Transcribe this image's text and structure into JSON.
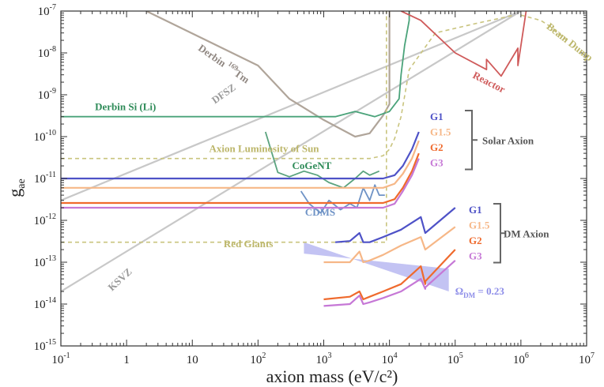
{
  "chart_data": {
    "type": "line",
    "title": "",
    "xlabel": "axion mass (eV/c²)",
    "ylabel_main": "g",
    "ylabel_sub": "ae",
    "xscale": "log",
    "yscale": "log",
    "xlim": [
      0.1,
      10000000
    ],
    "ylim": [
      1e-15,
      1e-07
    ],
    "x_tick_labels": [
      {
        "v": 0.1,
        "base": "10",
        "exp": "-1"
      },
      {
        "v": 1,
        "base": "1",
        "exp": ""
      },
      {
        "v": 10,
        "base": "10",
        "exp": ""
      },
      {
        "v": 100,
        "base": "10",
        "exp": "2"
      },
      {
        "v": 1000,
        "base": "10",
        "exp": "3"
      },
      {
        "v": 10000,
        "base": "10",
        "exp": "4"
      },
      {
        "v": 100000,
        "base": "10",
        "exp": "5"
      },
      {
        "v": 1000000,
        "base": "10",
        "exp": "6"
      },
      {
        "v": 10000000,
        "base": "10",
        "exp": "7"
      }
    ],
    "y_tick_labels": [
      {
        "v": 1e-15,
        "exp": "-15"
      },
      {
        "v": 1e-14,
        "exp": "-14"
      },
      {
        "v": 1e-13,
        "exp": "-13"
      },
      {
        "v": 1e-12,
        "exp": "-12"
      },
      {
        "v": 1e-11,
        "exp": "-11"
      },
      {
        "v": 1e-10,
        "exp": "-10"
      },
      {
        "v": 1e-09,
        "exp": "-9"
      },
      {
        "v": 1e-08,
        "exp": "-8"
      },
      {
        "v": 1e-07,
        "exp": "-7"
      }
    ],
    "series": [
      {
        "name": "DFSZ",
        "color": "#c8c8c8",
        "width": 2.2,
        "x": [
          0.1,
          1000000
        ],
        "y": [
          3e-12,
          1e-07
        ]
      },
      {
        "name": "KSVZ",
        "color": "#c8c8c8",
        "width": 2.2,
        "x": [
          0.1,
          1000000
        ],
        "y": [
          2e-14,
          1e-07
        ]
      },
      {
        "name": "Derbin 169Tm",
        "color": "#b0a59a",
        "width": 2.2,
        "x": [
          2,
          100,
          300,
          1000,
          3000,
          5000,
          8000,
          10000,
          10000
        ],
        "y": [
          1e-07,
          5e-09,
          8e-10,
          2.5e-10,
          1e-10,
          1.2e-10,
          3.2e-10,
          6e-10,
          1e-07
        ]
      },
      {
        "name": "Derbin Si (Li)",
        "color": "#4aa37a",
        "width": 1.8,
        "x": [
          0.1,
          1500,
          3000,
          6000,
          10000,
          14000,
          15000,
          17000,
          20000,
          20000
        ],
        "y": [
          3e-10,
          3e-10,
          4e-10,
          3e-10,
          4e-10,
          8e-10,
          3e-09,
          1.5e-08,
          6e-08,
          1e-07
        ]
      },
      {
        "name": "Axion Luminosity of Sun",
        "color": "#c9c47e",
        "width": 1.6,
        "dash": "5,4",
        "x": [
          0.1,
          1000,
          5000,
          8000,
          10000,
          12000,
          15000,
          20000,
          50000,
          200000,
          800000
        ],
        "y": [
          3e-11,
          3e-11,
          3e-11,
          3.5e-11,
          5e-11,
          9e-11,
          3e-10,
          4e-09,
          3e-08,
          5e-08,
          8e-08
        ]
      },
      {
        "name": "Red Giants",
        "color": "#c9c47e",
        "width": 1.6,
        "dash": "5,4",
        "x": [
          0.1,
          9000,
          9000,
          9000,
          9000
        ],
        "y": [
          3e-13,
          3e-13,
          3e-13,
          1e-12,
          1e-07
        ]
      },
      {
        "name": "Beam Dump",
        "color": "#c9c47e",
        "width": 1.6,
        "dash": "5,4",
        "x": [
          1000000,
          2000000,
          3000000,
          5000000
        ],
        "y": [
          8e-08,
          6e-08,
          4e-08,
          2e-08
        ]
      },
      {
        "name": "Reactor",
        "color": "#cf5a5a",
        "width": 1.8,
        "x": [
          15000,
          30000,
          100000,
          300000,
          300000,
          500000,
          900000,
          900000,
          1200000
        ],
        "y": [
          1e-07,
          6e-08,
          1e-08,
          4e-09,
          7e-09,
          2.8e-09,
          1.3e-08,
          5e-09,
          1e-07
        ]
      },
      {
        "name": "CoGeNT",
        "color": "#5aa37e",
        "width": 1.8,
        "x": [
          130,
          200,
          300,
          500,
          800,
          1200,
          2000,
          3000,
          4000,
          5000,
          7000
        ],
        "y": [
          1.3e-10,
          1.4e-11,
          1.1e-11,
          1.5e-11,
          1.2e-11,
          8e-12,
          6e-12,
          1e-11,
          1.5e-11,
          1.2e-11,
          1.5e-11
        ]
      },
      {
        "name": "CDMS",
        "color": "#6f93c6",
        "width": 1.8,
        "x": [
          450,
          600,
          900,
          1200,
          1800,
          2500,
          3200,
          4000,
          5000,
          6000,
          7000,
          8500
        ],
        "y": [
          5e-12,
          2.5e-12,
          1.5e-12,
          3e-12,
          1.8e-12,
          2.5e-12,
          2e-12,
          6e-12,
          3e-12,
          7e-12,
          4e-12,
          4e-12
        ]
      },
      {
        "name": "Solar G1",
        "color": "#4e52c7",
        "width": 2.2,
        "x": [
          0.1,
          8000,
          12000,
          16000,
          22000,
          28000
        ],
        "y": [
          1e-11,
          1e-11,
          1.2e-11,
          2e-11,
          5e-11,
          1.3e-10
        ]
      },
      {
        "name": "Solar G1.5",
        "color": "#f6b787",
        "width": 2.2,
        "x": [
          0.1,
          8000,
          12000,
          16000,
          22000,
          28000
        ],
        "y": [
          6e-12,
          6e-12,
          7.5e-12,
          1.3e-11,
          3e-11,
          8e-11
        ]
      },
      {
        "name": "Solar G2",
        "color": "#ef6a2d",
        "width": 2.2,
        "x": [
          0.1,
          8000,
          12000,
          16000,
          22000,
          28000
        ],
        "y": [
          2.6e-12,
          2.6e-12,
          3.2e-12,
          6e-12,
          1.5e-11,
          4e-11
        ]
      },
      {
        "name": "Solar G3",
        "color": "#c678d6",
        "width": 2.2,
        "x": [
          0.1,
          8000,
          12000,
          16000,
          22000,
          28000
        ],
        "y": [
          2e-12,
          2e-12,
          2.5e-12,
          5e-12,
          1.2e-11,
          3e-11
        ]
      },
      {
        "name": "DM G1",
        "color": "#4e52c7",
        "width": 2.2,
        "x": [
          1500,
          2500,
          3500,
          4000,
          5000,
          8000,
          15000,
          30000,
          35000,
          35000,
          100000
        ],
        "y": [
          3e-13,
          3.2e-13,
          5e-13,
          3e-13,
          3e-13,
          4e-13,
          6e-13,
          1.2e-12,
          5e-13,
          5e-13,
          2e-12
        ]
      },
      {
        "name": "DM G1.5",
        "color": "#f6b787",
        "width": 2.2,
        "x": [
          1000,
          2500,
          3500,
          4000,
          5000,
          8000,
          15000,
          30000,
          35000,
          35000,
          100000
        ],
        "y": [
          1e-13,
          1e-13,
          1.8e-13,
          1e-13,
          1.1e-13,
          1.5e-13,
          2.5e-13,
          4e-13,
          2e-13,
          2e-13,
          7e-13
        ]
      },
      {
        "name": "DM G2",
        "color": "#ef6a2d",
        "width": 2.2,
        "x": [
          1000,
          2500,
          3500,
          4000,
          5000,
          8000,
          15000,
          30000,
          35000,
          35000,
          100000
        ],
        "y": [
          1.3e-14,
          1.5e-14,
          2e-14,
          1.3e-14,
          1.5e-14,
          2e-14,
          3e-14,
          8e-14,
          3e-14,
          3.5e-14,
          2e-13
        ]
      },
      {
        "name": "DM G3",
        "color": "#c678d6",
        "width": 2.2,
        "x": [
          1000,
          2500,
          3500,
          4000,
          5000,
          8000,
          15000,
          30000,
          35000,
          35000,
          100000
        ],
        "y": [
          9e-15,
          1e-14,
          1.6e-14,
          1e-14,
          1.1e-14,
          1.4e-14,
          2e-14,
          4e-14,
          2.3e-14,
          2.5e-14,
          1.1e-13
        ]
      }
    ],
    "band": {
      "name": "Ω_DM = 0.23",
      "color": "#b9b9f1",
      "x": [
        500,
        500,
        80000,
        80000
      ],
      "y": [
        3e-13,
        1.6e-13,
        7e-14,
        2e-14
      ]
    },
    "annotations": [
      {
        "name": "derbin-tm",
        "text": "Derbin ",
        "sup": "169",
        "text2": "Tm",
        "x": 12,
        "y": 1.2e-08,
        "rot": 35,
        "color": "#8f8680",
        "size": 13
      },
      {
        "name": "dfsz",
        "text": "DFSZ",
        "x": 22,
        "y": 6e-10,
        "rot": -35,
        "color": "#9a9a9a",
        "size": 13
      },
      {
        "name": "ksvz",
        "text": "KSVZ",
        "x": 0.6,
        "y": 2e-14,
        "rot": -43,
        "color": "#9a9a9a",
        "size": 13
      },
      {
        "name": "derbin-si",
        "text": "Derbin Si (Li)",
        "x": 0.33,
        "y": 4.3e-10,
        "rot": 0,
        "color": "#2e8b58",
        "size": 13
      },
      {
        "name": "axion-luminosity",
        "text": "Axion Luminosity of Sun",
        "x": 18,
        "y": 4.3e-11,
        "rot": 0,
        "color": "#bcb66a",
        "size": 13
      },
      {
        "name": "cogent",
        "text": "CoGeNT",
        "x": 330,
        "y": 1.7e-11,
        "rot": 0,
        "color": "#2e8b58",
        "size": 13
      },
      {
        "name": "cdms",
        "text": "CDMS",
        "x": 520,
        "y": 1.3e-12,
        "rot": 0,
        "color": "#6f93c6",
        "size": 13
      },
      {
        "name": "red-giants",
        "text": "Red Giants",
        "x": 30,
        "y": 2.3e-13,
        "rot": 0,
        "color": "#bcb66a",
        "size": 13
      },
      {
        "name": "reactor",
        "text": "Reactor",
        "x": 180000,
        "y": 2.6e-09,
        "rot": 27,
        "color": "#cf5a5a",
        "size": 13
      },
      {
        "name": "beam-dump",
        "text": "Beam Dump",
        "x": 2400000,
        "y": 4e-08,
        "rot": 38,
        "color": "#bcb66a",
        "size": 13
      },
      {
        "name": "omega-dm",
        "text": "Ω",
        "sub": "DM",
        "text2": " = 0.23",
        "x": 100000,
        "y": 1.7e-14,
        "rot": 0,
        "color": "#8c8ce8",
        "size": 13
      }
    ],
    "legend_groups": [
      {
        "name": "solar",
        "title": "Solar Axion",
        "items": [
          {
            "label": "G1",
            "color": "#4e52c7"
          },
          {
            "label": "G1.5",
            "color": "#f6b787"
          },
          {
            "label": "G2",
            "color": "#ef6a2d"
          },
          {
            "label": "G3",
            "color": "#c678d6"
          }
        ]
      },
      {
        "name": "dm",
        "title": "DM Axion",
        "items": [
          {
            "label": "G1",
            "color": "#4e52c7"
          },
          {
            "label": "G1.5",
            "color": "#f6b787"
          },
          {
            "label": "G2",
            "color": "#ef6a2d"
          },
          {
            "label": "G3",
            "color": "#c678d6"
          }
        ]
      }
    ]
  }
}
